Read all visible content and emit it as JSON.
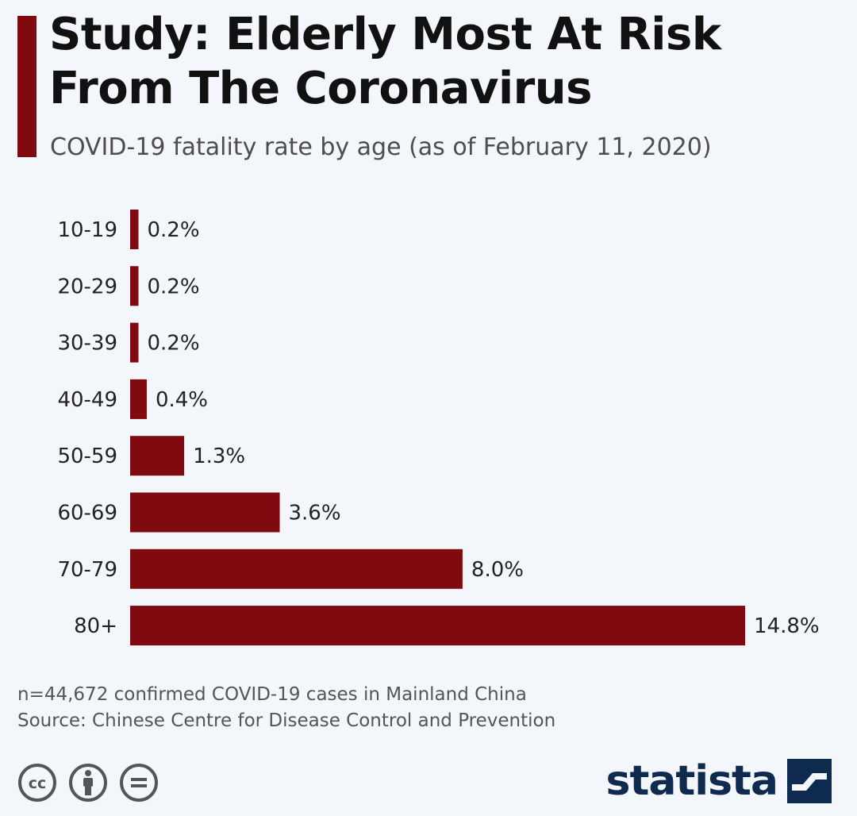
{
  "header": {
    "title_line1": "Study: Elderly Most At Risk",
    "title_line2": "From The Coronavirus",
    "subtitle": "COVID-19 fatality rate by age (as of February 11, 2020)"
  },
  "chart_data": {
    "type": "bar",
    "orientation": "horizontal",
    "title": "Study: Elderly Most At Risk From The Coronavirus",
    "subtitle": "COVID-19 fatality rate by age (as of February 11, 2020)",
    "categories": [
      "10-19",
      "20-29",
      "30-39",
      "40-49",
      "50-59",
      "60-69",
      "70-79",
      "80+"
    ],
    "values": [
      0.2,
      0.2,
      0.2,
      0.4,
      1.3,
      3.6,
      8.0,
      14.8
    ],
    "value_labels": [
      "0.2%",
      "0.2%",
      "0.2%",
      "0.4%",
      "1.3%",
      "3.6%",
      "8.0%",
      "14.8%"
    ],
    "unit": "%",
    "xlabel": "",
    "ylabel": "",
    "xlim": [
      0,
      14.8
    ],
    "grid": false,
    "legend": "none",
    "bar_color": "#7f0b10"
  },
  "footer": {
    "note": "n=44,672 confirmed COVID-19 cases in Mainland China",
    "source": "Source: Chinese Centre for Disease Control and Prevention",
    "license_icons": [
      "cc-icon",
      "attribution-icon",
      "no-derivatives-icon"
    ],
    "brand": "statista"
  },
  "colors": {
    "background": "#f3f6fa",
    "accent": "#7f0b10",
    "brand": "#0f2a4f"
  }
}
